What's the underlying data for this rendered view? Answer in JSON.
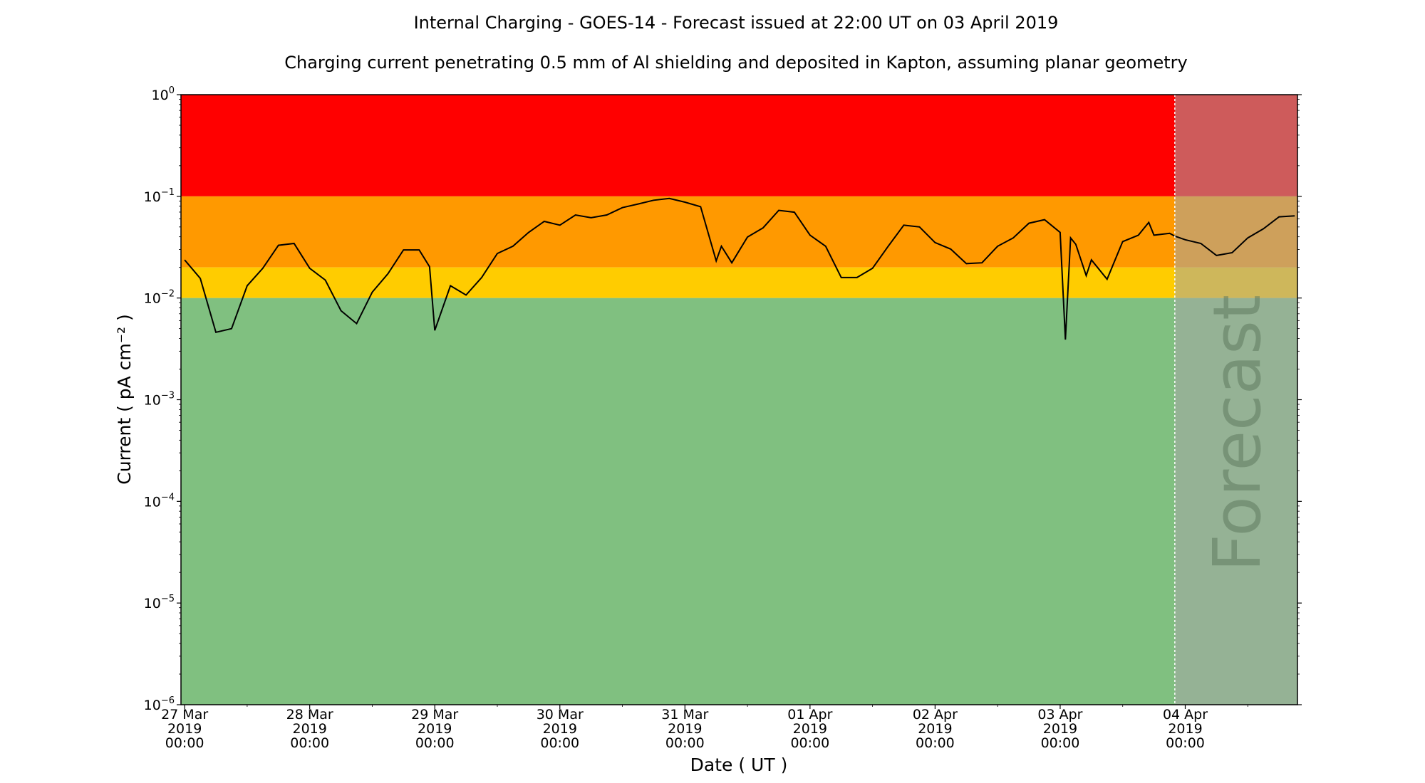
{
  "chart_data": {
    "type": "line",
    "title": "Internal Charging - GOES-14 - Forecast issued at 22:00 UT on 03 April 2019",
    "subtitle": "Charging current penetrating 0.5 mm of Al shielding and deposited in Kapton, assuming planar geometry",
    "xlabel": "Date ( UT )",
    "ylabel": "Current ( pA cm⁻² )",
    "yscale": "log",
    "ylim": [
      1e-06,
      1
    ],
    "xlim": [
      "2019-03-26T23:18",
      "2019-04-04T21:32"
    ],
    "grid": false,
    "forecast_start": "2019-04-03T22:00",
    "forecast_label": "Forecast",
    "bands": [
      {
        "from": 0.1,
        "to": 1,
        "color": "#ff0000"
      },
      {
        "from": 0.02,
        "to": 0.1,
        "color": "#ff9900"
      },
      {
        "from": 0.01,
        "to": 0.02,
        "color": "#ffcc00"
      },
      {
        "from": 1e-06,
        "to": 0.01,
        "color": "#80c080"
      }
    ],
    "forecast_overlay_color": "rgba(165,165,165,0.55)",
    "line_color": "#000000",
    "y_ticks": [
      {
        "value": 1,
        "base": "10",
        "exp": "0"
      },
      {
        "value": 0.1,
        "base": "10",
        "exp": "−1"
      },
      {
        "value": 0.01,
        "base": "10",
        "exp": "−2"
      },
      {
        "value": 0.001,
        "base": "10",
        "exp": "−3"
      },
      {
        "value": 0.0001,
        "base": "10",
        "exp": "−4"
      },
      {
        "value": 1e-05,
        "base": "10",
        "exp": "−5"
      },
      {
        "value": 1e-06,
        "base": "10",
        "exp": "−6"
      }
    ],
    "x_ticks": [
      {
        "t": "2019-03-27T00:00",
        "lines": [
          "27 Mar",
          "2019",
          "00:00"
        ]
      },
      {
        "t": "2019-03-28T00:00",
        "lines": [
          "28 Mar",
          "2019",
          "00:00"
        ]
      },
      {
        "t": "2019-03-29T00:00",
        "lines": [
          "29 Mar",
          "2019",
          "00:00"
        ]
      },
      {
        "t": "2019-03-30T00:00",
        "lines": [
          "30 Mar",
          "2019",
          "00:00"
        ]
      },
      {
        "t": "2019-03-31T00:00",
        "lines": [
          "31 Mar",
          "2019",
          "00:00"
        ]
      },
      {
        "t": "2019-04-01T00:00",
        "lines": [
          "01 Apr",
          "2019",
          "00:00"
        ]
      },
      {
        "t": "2019-04-02T00:00",
        "lines": [
          "02 Apr",
          "2019",
          "00:00"
        ]
      },
      {
        "t": "2019-04-03T00:00",
        "lines": [
          "03 Apr",
          "2019",
          "00:00"
        ]
      },
      {
        "t": "2019-04-04T00:00",
        "lines": [
          "04 Apr",
          "2019",
          "00:00"
        ]
      }
    ],
    "series": [
      {
        "points": [
          [
            "2019-03-27T00:00",
            0.0237
          ],
          [
            "2019-03-27T03:00",
            0.0156
          ],
          [
            "2019-03-27T06:00",
            0.0046
          ],
          [
            "2019-03-27T09:00",
            0.005
          ],
          [
            "2019-03-27T12:00",
            0.0132
          ],
          [
            "2019-03-27T15:00",
            0.0196
          ],
          [
            "2019-03-27T18:00",
            0.033
          ],
          [
            "2019-03-27T21:00",
            0.0344
          ],
          [
            "2019-03-28T00:00",
            0.0196
          ],
          [
            "2019-03-28T03:00",
            0.015
          ],
          [
            "2019-03-28T06:00",
            0.0075
          ],
          [
            "2019-03-28T09:00",
            0.0056
          ],
          [
            "2019-03-28T12:00",
            0.0114
          ],
          [
            "2019-03-28T15:00",
            0.0173
          ],
          [
            "2019-03-28T18:00",
            0.0297
          ],
          [
            "2019-03-28T21:00",
            0.0297
          ],
          [
            "2019-03-28T23:00",
            0.0203
          ],
          [
            "2019-03-29T00:00",
            0.0048
          ],
          [
            "2019-03-29T03:00",
            0.0132
          ],
          [
            "2019-03-29T06:00",
            0.0107
          ],
          [
            "2019-03-29T09:00",
            0.0159
          ],
          [
            "2019-03-29T12:00",
            0.0274
          ],
          [
            "2019-03-29T15:00",
            0.0323
          ],
          [
            "2019-03-29T18:00",
            0.0442
          ],
          [
            "2019-03-29T21:00",
            0.0567
          ],
          [
            "2019-03-30T00:00",
            0.0521
          ],
          [
            "2019-03-30T03:00",
            0.0656
          ],
          [
            "2019-03-30T06:00",
            0.0616
          ],
          [
            "2019-03-30T09:00",
            0.0656
          ],
          [
            "2019-03-30T12:00",
            0.0774
          ],
          [
            "2019-03-30T15:00",
            0.0841
          ],
          [
            "2019-03-30T18:00",
            0.0916
          ],
          [
            "2019-03-30T21:00",
            0.0953
          ],
          [
            "2019-03-31T00:00",
            0.0877
          ],
          [
            "2019-03-31T03:00",
            0.0791
          ],
          [
            "2019-03-31T06:00",
            0.0232
          ],
          [
            "2019-03-31T07:00",
            0.0323
          ],
          [
            "2019-03-31T09:00",
            0.0222
          ],
          [
            "2019-03-31T12:00",
            0.0398
          ],
          [
            "2019-03-31T15:00",
            0.049
          ],
          [
            "2019-03-31T18:00",
            0.0728
          ],
          [
            "2019-03-31T21:00",
            0.0698
          ],
          [
            "2019-04-01T00:00",
            0.0415
          ],
          [
            "2019-04-01T03:00",
            0.0323
          ],
          [
            "2019-04-01T06:00",
            0.0159
          ],
          [
            "2019-04-01T09:00",
            0.0159
          ],
          [
            "2019-04-01T12:00",
            0.0196
          ],
          [
            "2019-04-01T15:00",
            0.0323
          ],
          [
            "2019-04-01T18:00",
            0.0521
          ],
          [
            "2019-04-01T21:00",
            0.05
          ],
          [
            "2019-04-02T00:00",
            0.0351
          ],
          [
            "2019-04-02T03:00",
            0.0303
          ],
          [
            "2019-04-02T06:00",
            0.0218
          ],
          [
            "2019-04-02T09:00",
            0.0222
          ],
          [
            "2019-04-02T12:00",
            0.0323
          ],
          [
            "2019-04-02T15:00",
            0.039
          ],
          [
            "2019-04-02T18:00",
            0.0544
          ],
          [
            "2019-04-02T21:00",
            0.059
          ],
          [
            "2019-04-03T00:00",
            0.0442
          ],
          [
            "2019-04-03T01:00",
            0.0039
          ],
          [
            "2019-04-03T02:00",
            0.039
          ],
          [
            "2019-04-03T03:00",
            0.0337
          ],
          [
            "2019-04-03T05:00",
            0.0166
          ],
          [
            "2019-04-03T06:00",
            0.0237
          ],
          [
            "2019-04-03T09:00",
            0.0153
          ],
          [
            "2019-04-03T12:00",
            0.0359
          ],
          [
            "2019-04-03T15:00",
            0.0415
          ],
          [
            "2019-04-03T17:00",
            0.0555
          ],
          [
            "2019-04-03T18:00",
            0.0415
          ],
          [
            "2019-04-03T21:00",
            0.0433
          ],
          [
            "2019-04-03T22:00",
            0.0406
          ],
          [
            "2019-04-04T00:00",
            0.0374
          ],
          [
            "2019-04-04T03:00",
            0.0344
          ],
          [
            "2019-04-04T06:00",
            0.0262
          ],
          [
            "2019-04-04T09:00",
            0.0279
          ],
          [
            "2019-04-04T12:00",
            0.039
          ],
          [
            "2019-04-04T15:00",
            0.048
          ],
          [
            "2019-04-04T18:00",
            0.0629
          ],
          [
            "2019-04-04T21:00",
            0.0643
          ]
        ]
      }
    ]
  }
}
